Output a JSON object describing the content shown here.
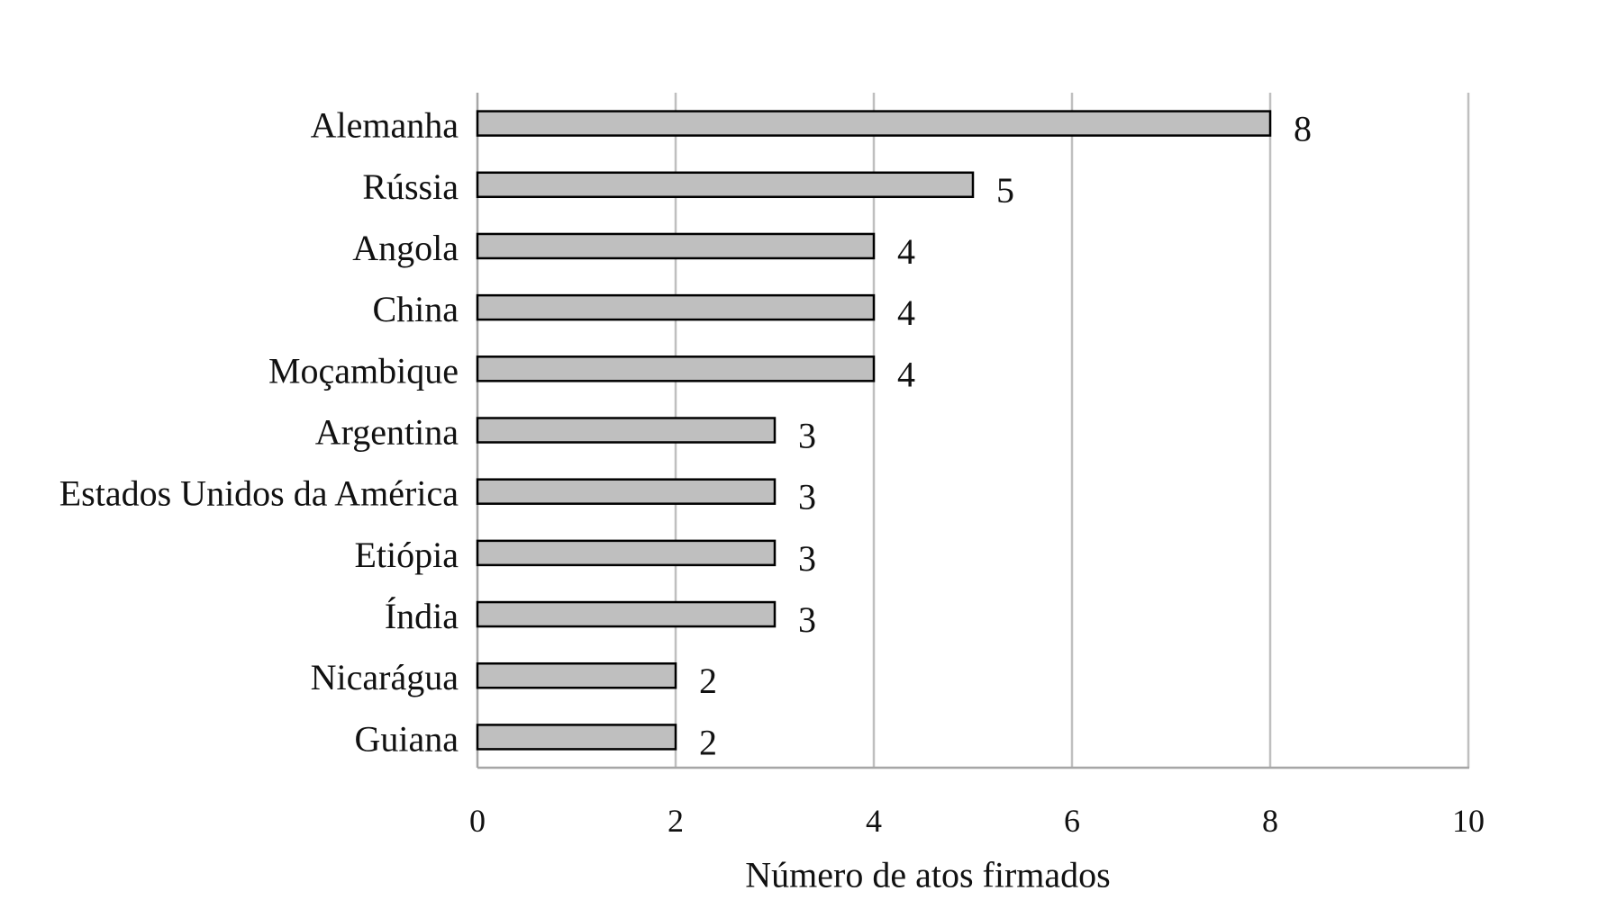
{
  "chart_data": {
    "type": "bar",
    "orientation": "horizontal",
    "categories": [
      "Alemanha",
      "Rússia",
      "Angola",
      "China",
      "Moçambique",
      "Argentina",
      "Estados Unidos da América",
      "Etiópia",
      "Índia",
      "Nicarágua",
      "Guiana"
    ],
    "values": [
      8,
      5,
      4,
      4,
      4,
      3,
      3,
      3,
      3,
      2,
      2
    ],
    "xlabel": "Número de atos firmados",
    "xlim": [
      0,
      10
    ],
    "xticks": [
      0,
      2,
      4,
      6,
      8,
      10
    ],
    "grid": true,
    "legend": false,
    "data_labels": true
  },
  "colors": {
    "bar_fill": "#bfbfbf",
    "bar_stroke": "#000000",
    "grid": "#bfbfbf",
    "axis": "#a6a6a6",
    "text": "#111111"
  }
}
